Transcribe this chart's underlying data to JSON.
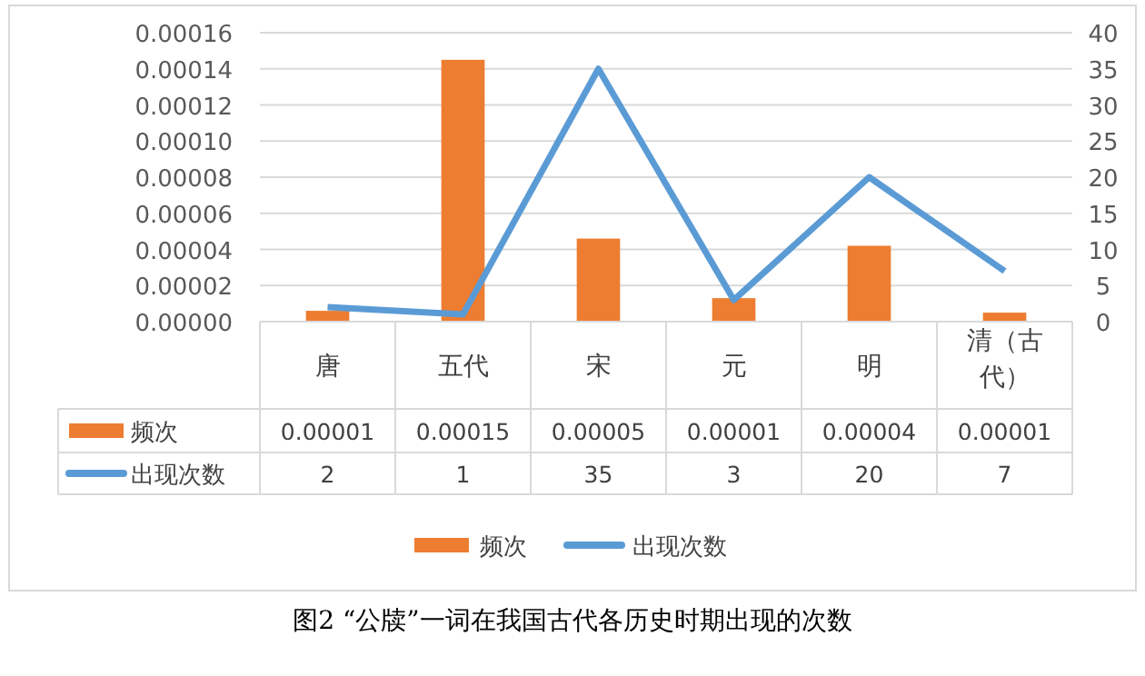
{
  "chart_data": {
    "type": "bar",
    "categories": [
      "唐",
      "五代",
      "宋",
      "元",
      "明",
      "清（古代）"
    ],
    "series": [
      {
        "name": "频次",
        "color": "#ed7d31",
        "values": [
          6e-06,
          0.000145,
          4.6e-05,
          1.3e-05,
          4.2e-05,
          5e-06
        ],
        "value_labels": [
          "0.00001",
          "0.00015",
          "0.00005",
          "0.00001",
          "0.00004",
          "0.00001"
        ]
      },
      {
        "name": "出现次数",
        "type": "line",
        "axis": "y2",
        "color": "#5b9bd5",
        "values": [
          2,
          1,
          35,
          3,
          20,
          7
        ],
        "value_labels": [
          "2",
          "1",
          "35",
          "3",
          "20",
          "7"
        ]
      }
    ],
    "ylim": [
      0,
      0.00016
    ],
    "yticks": [
      {
        "value": 0,
        "label": "0.00000"
      },
      {
        "value": 2e-05,
        "label": "0.00002"
      },
      {
        "value": 4e-05,
        "label": "0.00004"
      },
      {
        "value": 6e-05,
        "label": "0.00006"
      },
      {
        "value": 8e-05,
        "label": "0.00008"
      },
      {
        "value": 0.0001,
        "label": "0.00010"
      },
      {
        "value": 0.00012,
        "label": "0.00012"
      },
      {
        "value": 0.00014,
        "label": "0.00014"
      },
      {
        "value": 0.00016,
        "label": "0.00016"
      }
    ],
    "y2lim": [
      0,
      40
    ],
    "y2ticks": [
      0,
      5,
      10,
      15,
      20,
      25,
      30,
      35,
      40
    ],
    "grid": "y",
    "legend": "bottom",
    "marker": "none",
    "line_style": "solid",
    "annotations": [
      "图2 “公牍”一词在我国古代各历史时期出现的次数"
    ]
  }
}
